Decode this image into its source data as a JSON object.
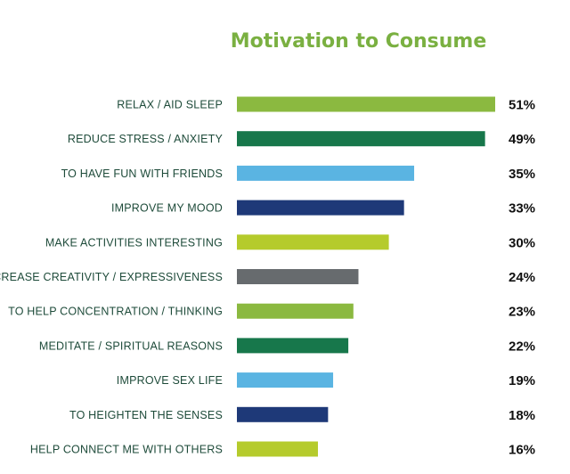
{
  "chart_data": {
    "type": "bar",
    "orientation": "horizontal",
    "title": "Motivation to Consume",
    "categories": [
      "RELAX / AID SLEEP",
      "REDUCE STRESS / ANXIETY",
      "TO HAVE FUN WITH FRIENDS",
      "IMPROVE MY MOOD",
      "MAKE ACTIVITIES INTERESTING",
      "INCREASE CREATIVITY / EXPRESSIVENESS",
      "TO HELP CONCENTRATION / THINKING",
      "MEDITATE / SPIRITUAL REASONS",
      "IMPROVE SEX LIFE",
      "TO HEIGHTEN THE SENSES",
      "HELP CONNECT ME WITH OTHERS"
    ],
    "values": [
      51,
      49,
      35,
      33,
      30,
      24,
      23,
      22,
      19,
      18,
      16
    ],
    "value_labels": [
      "51%",
      "49%",
      "35%",
      "33%",
      "30%",
      "24%",
      "23%",
      "22%",
      "19%",
      "18%",
      "16%"
    ],
    "colors": [
      "#8bb940",
      "#17774b",
      "#5ab4e2",
      "#1e3978",
      "#b5cb2c",
      "#676b6e",
      "#8bb940",
      "#17774b",
      "#5ab4e2",
      "#1e3978",
      "#b5cb2c"
    ],
    "xlim": [
      0,
      51
    ],
    "grid": false,
    "legend": "none"
  }
}
